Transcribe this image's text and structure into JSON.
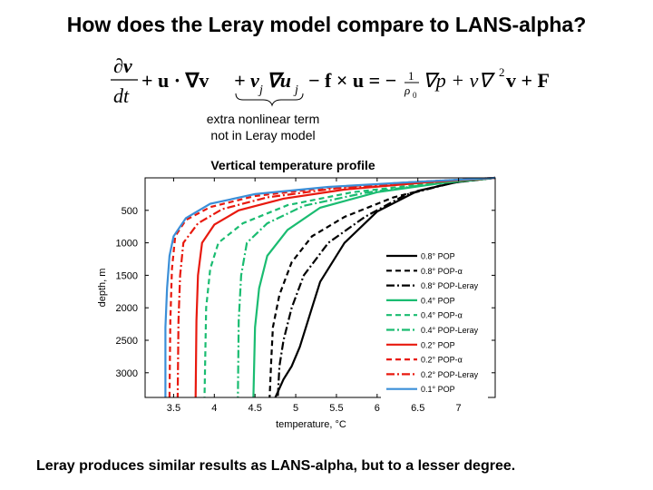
{
  "slide": {
    "title": "How does the Leray model compare to LANS-alpha?",
    "annotation_line1": "extra nonlinear term",
    "annotation_line2": "not in Leray model",
    "footer": "Leray produces similar results as LANS-alpha, but to a lesser degree."
  },
  "equation": {
    "dv": "∂v",
    "dt": "dt",
    "adv": "+ u · ∇v",
    "extra": "+ v",
    "extra_sub1": "j",
    "extra_mid": "∇u",
    "extra_sub2": "j",
    "coriolis": "− f × u = −",
    "frac_num": "1",
    "frac_den": "ρ",
    "frac_den_sub": "0",
    "rest1": "∇p + ν∇",
    "rest_sup": "2",
    "rest2": "v + F"
  },
  "chart_data": {
    "type": "line",
    "title": "Vertical temperature profile",
    "xlabel": "temperature, °C",
    "ylabel": "depth, m",
    "xlim": [
      3.15,
      7.45
    ],
    "ylim": [
      3380,
      0
    ],
    "xticks": [
      3.5,
      4,
      4.5,
      5,
      5.5,
      6,
      6.5,
      7
    ],
    "yticks": [
      500,
      1000,
      1500,
      2000,
      2500,
      3000
    ],
    "legend_position": "right",
    "series": [
      {
        "name": "0.8° POP",
        "color": "#000000",
        "dash": "solid",
        "points": [
          [
            7.45,
            0
          ],
          [
            7.0,
            60
          ],
          [
            6.5,
            200
          ],
          [
            6.0,
            520
          ],
          [
            5.6,
            1000
          ],
          [
            5.3,
            1600
          ],
          [
            5.2,
            2000
          ],
          [
            5.05,
            2600
          ],
          [
            4.95,
            2900
          ],
          [
            4.85,
            3100
          ],
          [
            4.75,
            3380
          ]
        ]
      },
      {
        "name": "0.8° POP-α",
        "color": "#000000",
        "dash": "dashed",
        "points": [
          [
            7.45,
            0
          ],
          [
            6.9,
            80
          ],
          [
            6.2,
            300
          ],
          [
            5.6,
            600
          ],
          [
            5.2,
            900
          ],
          [
            4.95,
            1300
          ],
          [
            4.8,
            1800
          ],
          [
            4.72,
            2300
          ],
          [
            4.7,
            2800
          ],
          [
            4.68,
            3380
          ]
        ]
      },
      {
        "name": "0.8° POP-Leray",
        "color": "#000000",
        "dash": "dashdot",
        "points": [
          [
            7.45,
            0
          ],
          [
            6.95,
            70
          ],
          [
            6.35,
            260
          ],
          [
            5.85,
            600
          ],
          [
            5.4,
            1000
          ],
          [
            5.1,
            1500
          ],
          [
            4.95,
            2000
          ],
          [
            4.85,
            2500
          ],
          [
            4.8,
            2900
          ],
          [
            4.78,
            3380
          ]
        ]
      },
      {
        "name": "0.4° POP",
        "color": "#1abc71",
        "dash": "solid",
        "points": [
          [
            7.45,
            0
          ],
          [
            6.8,
            80
          ],
          [
            6.0,
            220
          ],
          [
            5.3,
            460
          ],
          [
            4.9,
            800
          ],
          [
            4.65,
            1200
          ],
          [
            4.55,
            1700
          ],
          [
            4.5,
            2300
          ],
          [
            4.48,
            3380
          ]
        ]
      },
      {
        "name": "0.4° POP-α",
        "color": "#1abc71",
        "dash": "dashed",
        "points": [
          [
            7.45,
            0
          ],
          [
            6.7,
            80
          ],
          [
            5.7,
            220
          ],
          [
            4.9,
            420
          ],
          [
            4.35,
            700
          ],
          [
            4.05,
            1000
          ],
          [
            3.95,
            1400
          ],
          [
            3.9,
            2000
          ],
          [
            3.88,
            3380
          ]
        ]
      },
      {
        "name": "0.4° POP-Leray",
        "color": "#1abc71",
        "dash": "dashdot",
        "points": [
          [
            7.45,
            0
          ],
          [
            6.75,
            80
          ],
          [
            5.85,
            230
          ],
          [
            5.1,
            430
          ],
          [
            4.65,
            700
          ],
          [
            4.4,
            1000
          ],
          [
            4.33,
            1500
          ],
          [
            4.3,
            2200
          ],
          [
            4.29,
            3380
          ]
        ]
      },
      {
        "name": "0.2° POP",
        "color": "#e8190e",
        "dash": "solid",
        "points": [
          [
            7.45,
            0
          ],
          [
            6.6,
            70
          ],
          [
            5.6,
            180
          ],
          [
            4.85,
            320
          ],
          [
            4.3,
            500
          ],
          [
            4.0,
            720
          ],
          [
            3.85,
            1000
          ],
          [
            3.8,
            1500
          ],
          [
            3.78,
            2200
          ],
          [
            3.77,
            3380
          ]
        ]
      },
      {
        "name": "0.2° POP-α",
        "color": "#e8190e",
        "dash": "dashed",
        "points": [
          [
            7.45,
            0
          ],
          [
            6.5,
            60
          ],
          [
            5.4,
            150
          ],
          [
            4.5,
            280
          ],
          [
            3.95,
            450
          ],
          [
            3.65,
            650
          ],
          [
            3.52,
            900
          ],
          [
            3.48,
            1400
          ],
          [
            3.46,
            2200
          ],
          [
            3.45,
            3380
          ]
        ]
      },
      {
        "name": "0.2° POP-Leray",
        "color": "#e8190e",
        "dash": "dashdot",
        "points": [
          [
            7.45,
            0
          ],
          [
            6.55,
            65
          ],
          [
            5.5,
            160
          ],
          [
            4.65,
            300
          ],
          [
            4.1,
            480
          ],
          [
            3.8,
            700
          ],
          [
            3.62,
            1000
          ],
          [
            3.58,
            1500
          ],
          [
            3.56,
            2200
          ],
          [
            3.55,
            3380
          ]
        ]
      },
      {
        "name": "0.1° POP",
        "color": "#3b8fd8",
        "dash": "solid",
        "points": [
          [
            7.45,
            0
          ],
          [
            6.5,
            60
          ],
          [
            5.4,
            140
          ],
          [
            4.5,
            250
          ],
          [
            3.95,
            400
          ],
          [
            3.65,
            620
          ],
          [
            3.5,
            900
          ],
          [
            3.45,
            1200
          ],
          [
            3.42,
            1700
          ],
          [
            3.4,
            2300
          ],
          [
            3.4,
            3380
          ]
        ]
      }
    ]
  }
}
